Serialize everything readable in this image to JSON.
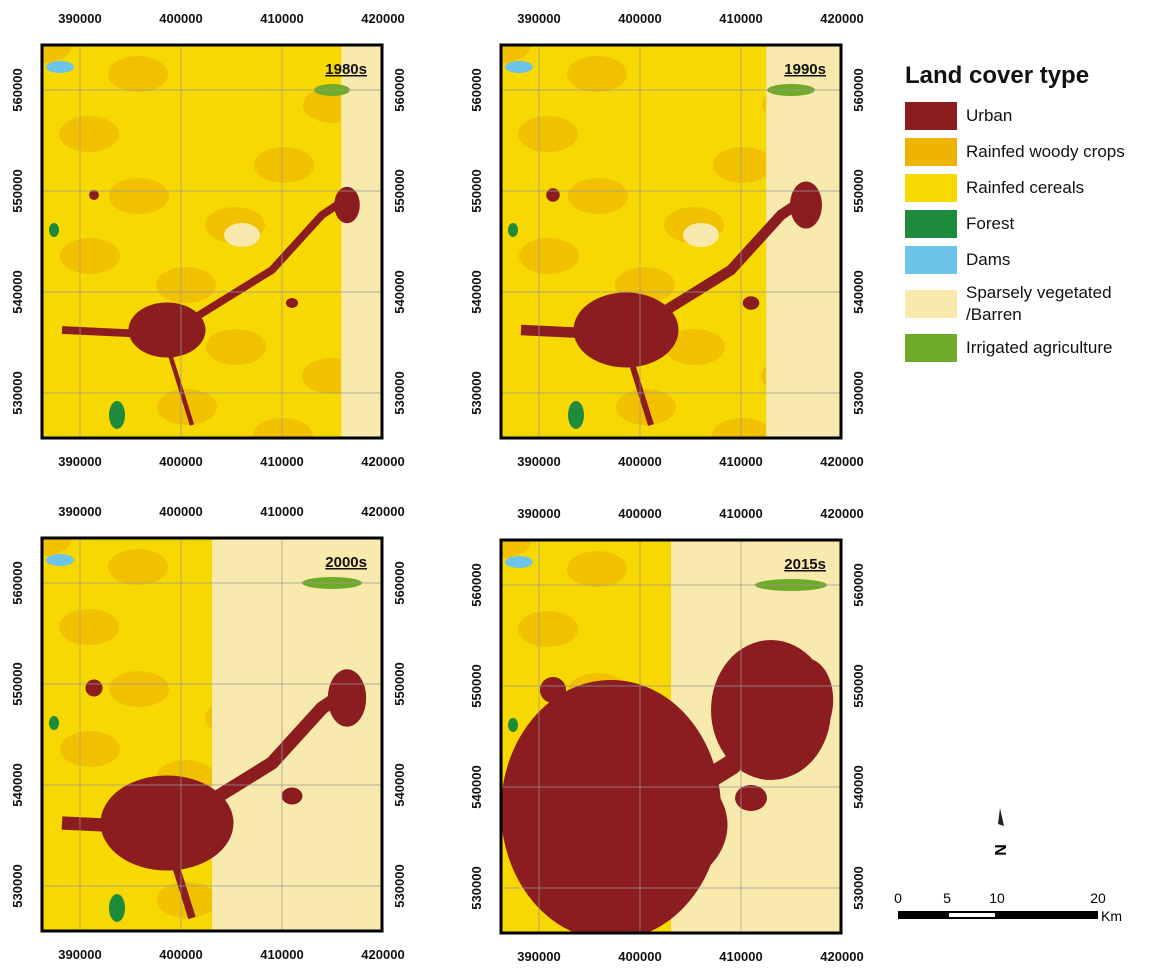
{
  "panels": [
    {
      "label": "1980s"
    },
    {
      "label": "1990s"
    },
    {
      "label": "2000s"
    },
    {
      "label": "2015s"
    }
  ],
  "x_ticks": [
    "390000",
    "400000",
    "410000",
    "420000"
  ],
  "y_ticks": [
    "560000",
    "550000",
    "540000",
    "530000"
  ],
  "legend": {
    "title": "Land cover type",
    "items": [
      {
        "label": "Urban",
        "color": "#8b1c1f"
      },
      {
        "label": "Rainfed woody crops",
        "color": "#edb300"
      },
      {
        "label": "Rainfed cereals",
        "color": "#f7d800"
      },
      {
        "label": "Forest",
        "color": "#1e8a3c"
      },
      {
        "label": "Dams",
        "color": "#6cc4e8"
      },
      {
        "label": "Sparsely vegetated /Barren",
        "color": "#f8e9ad"
      },
      {
        "label": "Irrigated agriculture",
        "color": "#6fab28"
      }
    ]
  },
  "scale_bar": {
    "labels": [
      "0",
      "5",
      "10",
      "20"
    ],
    "unit": "Km"
  },
  "north": "N"
}
